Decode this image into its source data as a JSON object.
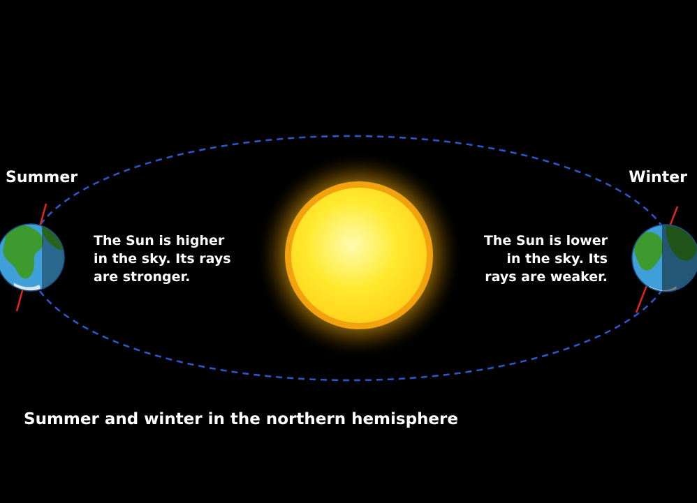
{
  "labels": {
    "summer": "Summer",
    "winter": "Winter"
  },
  "summer_note": {
    "lines": [
      "The Sun is higher",
      "in the sky. Its rays",
      "are stronger."
    ]
  },
  "winter_note": {
    "lines": [
      "The Sun is lower",
      "in the sky. Its",
      "rays are weaker."
    ]
  },
  "caption": "Summer and winter in the northern hemisphere",
  "colors": {
    "background": "#000000",
    "orbit": "#2a58c9",
    "sun_core": "#ffe62e",
    "sun_rim": "#f2a10f",
    "ocean": "#3f9fd8",
    "land": "#3c9a2e",
    "axis": "#e0261f",
    "text": "#ffffff"
  },
  "icons": {
    "sun": "sun-icon",
    "earth": "earth-icon"
  }
}
